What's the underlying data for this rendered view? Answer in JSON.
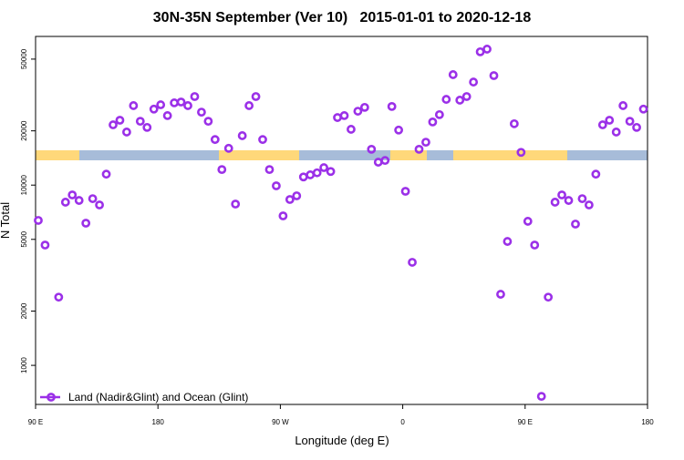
{
  "chart_data": {
    "type": "scatter",
    "title": "30N-35N September (Ver 10)   2015-01-01 to 2020-12-18",
    "xlabel": "Longitude (deg E)",
    "ylabel": "N Total",
    "x": [
      92,
      97,
      107,
      112,
      117,
      122,
      127,
      132,
      137,
      142,
      147,
      152,
      157,
      162,
      167,
      172,
      177,
      182,
      187,
      192,
      197,
      202,
      207,
      212,
      217,
      222,
      227,
      232,
      237,
      242,
      247,
      252,
      257,
      262,
      267,
      272,
      277,
      282,
      287,
      292,
      297,
      302,
      307,
      312,
      317,
      322,
      327,
      332,
      337,
      342,
      347,
      352,
      357,
      362,
      367,
      372,
      377,
      382,
      387,
      392,
      397,
      402,
      407,
      412,
      417,
      422,
      427,
      432,
      437,
      442,
      447,
      452,
      457,
      462,
      467,
      472,
      477,
      482,
      487,
      492,
      497,
      502,
      507,
      512,
      517,
      522,
      527,
      532,
      537
    ],
    "series": [
      {
        "name": "Land (Nadir&Glint) and Ocean (Glint)",
        "color": "#9b30e8",
        "values": [
          6370,
          4650,
          2390,
          8040,
          8820,
          8220,
          6150,
          8410,
          7760,
          11500,
          21600,
          22900,
          19700,
          27600,
          22600,
          20900,
          26400,
          27900,
          24300,
          28600,
          28900,
          27600,
          31000,
          25400,
          22600,
          17900,
          12200,
          16000,
          7850,
          18800,
          27600,
          31000,
          17900,
          12200,
          9910,
          6750,
          8320,
          8720,
          11100,
          11400,
          11700,
          12500,
          11900,
          23700,
          24300,
          20400,
          25700,
          27000,
          15800,
          13400,
          13700,
          27300,
          20200,
          9240,
          3730,
          15800,
          17300,
          22400,
          24600,
          29900,
          41000,
          29600,
          31000,
          37300,
          54900,
          56800,
          40500,
          2480,
          4870,
          21900,
          15200,
          6300,
          4650,
          673,
          2390,
          8040,
          8820,
          8220,
          6080,
          8410,
          7760,
          11500,
          21600,
          22900,
          19700,
          27600,
          22600,
          20900,
          26400
        ]
      }
    ],
    "xlim": [
      90,
      540
    ],
    "ylim": [
      607,
      66800
    ],
    "log_y": true,
    "xticks": [
      {
        "value": 90,
        "label": "90 E"
      },
      180,
      {
        "value": 270,
        "label": "90 W"
      },
      {
        "value": 360,
        "label": "0"
      },
      {
        "value": 450,
        "label": "90 E"
      },
      {
        "value": 540,
        "label": "180"
      }
    ],
    "yticks": [
      1000,
      2000,
      5000,
      10000,
      20000,
      50000
    ],
    "legend": "bottom-left"
  }
}
